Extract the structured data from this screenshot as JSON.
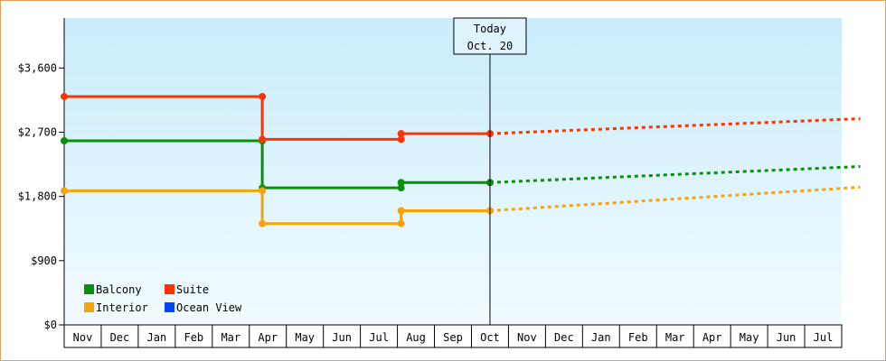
{
  "chart_data": {
    "type": "line",
    "step": true,
    "title": "",
    "xlabel": "",
    "ylabel": "",
    "months": [
      "Nov",
      "Dec",
      "Jan",
      "Feb",
      "Mar",
      "Apr",
      "May",
      "Jun",
      "Jul",
      "Aug",
      "Sep",
      "Oct",
      "Nov",
      "Dec",
      "Jan",
      "Feb",
      "Mar",
      "Apr",
      "May",
      "Jun",
      "Jul"
    ],
    "ylim": [
      0,
      4300
    ],
    "yticks": [
      0,
      900,
      1800,
      2700,
      3600
    ],
    "ytick_labels": [
      "$0",
      "$900",
      "$1,800",
      "$2,700",
      "$3,600"
    ],
    "today": {
      "line1": "Today",
      "line2": "Oct. 20",
      "month_index": 11.5
    },
    "legend": {
      "placement": "bottom-left"
    },
    "series": [
      {
        "name": "Balcony",
        "color": "#0a8f0a",
        "points": [
          [
            0,
            2580
          ],
          [
            5.35,
            2580
          ],
          [
            5.35,
            1920
          ],
          [
            9.1,
            1920
          ],
          [
            9.1,
            1995
          ],
          [
            11.5,
            1995
          ]
        ],
        "projection": [
          [
            11.5,
            1995
          ],
          [
            21.5,
            2220
          ]
        ]
      },
      {
        "name": "Suite",
        "color": "#ff3300",
        "points": [
          [
            0,
            3200
          ],
          [
            5.35,
            3200
          ],
          [
            5.35,
            2600
          ],
          [
            9.1,
            2600
          ],
          [
            9.1,
            2680
          ],
          [
            11.5,
            2680
          ]
        ],
        "projection": [
          [
            11.5,
            2680
          ],
          [
            21.5,
            2890
          ]
        ]
      },
      {
        "name": "Interior",
        "color": "#f5a30a",
        "points": [
          [
            0,
            1880
          ],
          [
            5.35,
            1880
          ],
          [
            5.35,
            1420
          ],
          [
            9.1,
            1420
          ],
          [
            9.1,
            1600
          ],
          [
            11.5,
            1600
          ]
        ],
        "projection": [
          [
            11.5,
            1600
          ],
          [
            21.5,
            1930
          ]
        ]
      },
      {
        "name": "Ocean View",
        "color": "#0044ff",
        "points": [],
        "projection": []
      }
    ]
  }
}
